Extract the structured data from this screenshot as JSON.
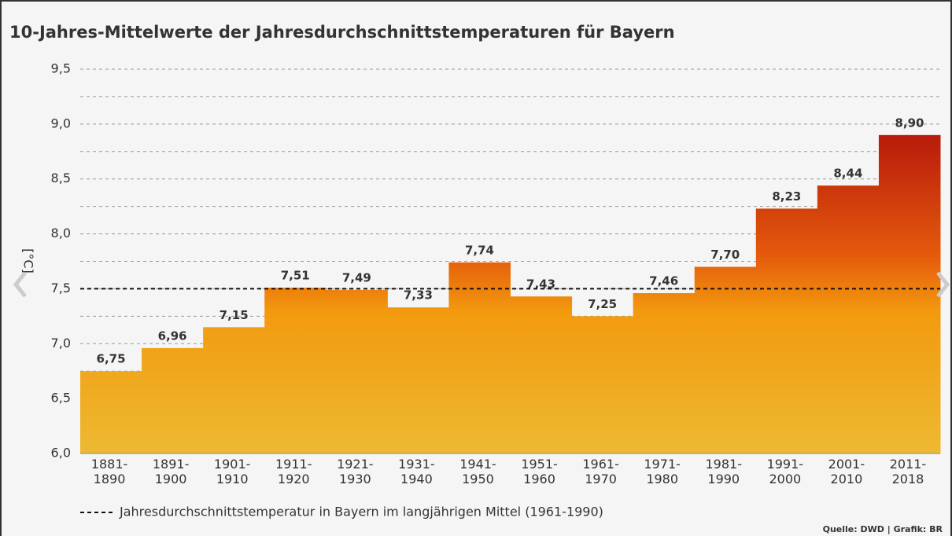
{
  "chart_data": {
    "type": "step-bar",
    "title": "10-Jahres-Mittelwerte der Jahresdurchschnittstemperaturen für Bayern",
    "y_label": "[°C]",
    "categories": [
      "1881-1890",
      "1891-1900",
      "1901-1910",
      "1911-1920",
      "1921-1930",
      "1931-1940",
      "1941-1950",
      "1951-1960",
      "1961-1970",
      "1971-1980",
      "1981-1990",
      "1991-2000",
      "2001-2010",
      "2011-2018"
    ],
    "values": [
      6.75,
      6.96,
      7.15,
      7.51,
      7.49,
      7.33,
      7.74,
      7.43,
      7.25,
      7.46,
      7.7,
      8.23,
      8.44,
      8.9
    ],
    "value_labels": [
      "6,75",
      "6,96",
      "7,15",
      "7,51",
      "7,49",
      "7,33",
      "7,74",
      "7,43",
      "7,25",
      "7,46",
      "7,70",
      "8,23",
      "8,44",
      "8,90"
    ],
    "gradient": [
      "#edb932",
      "#f29a0e",
      "#e55a0c",
      "#b3150b"
    ],
    "ylim": [
      6.0,
      9.5
    ],
    "yticks": [
      {
        "value": 6.0,
        "label": "6,0"
      },
      {
        "value": 6.5,
        "label": "6,5"
      },
      {
        "value": 7.0,
        "label": "7,0"
      },
      {
        "value": 7.5,
        "label": "7,5"
      },
      {
        "value": 8.0,
        "label": "8,0"
      },
      {
        "value": 8.5,
        "label": "8,5"
      },
      {
        "value": 9.0,
        "label": "9,0"
      },
      {
        "value": 9.5,
        "label": "9,5"
      }
    ],
    "minor_gridlines": [
      6.25,
      6.75,
      7.25,
      7.75,
      8.25,
      8.75,
      9.25
    ],
    "grid": true,
    "reference_line": {
      "value": 7.5,
      "label": "Jahresdurchschnittstemperatur in Bayern im langjährigen Mittel (1961-1990)"
    },
    "source": "Quelle: DWD | Grafik: BR"
  }
}
